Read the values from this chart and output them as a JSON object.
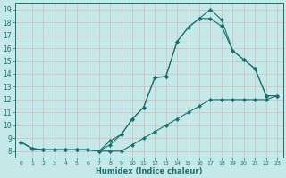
{
  "xlabel": "Humidex (Indice chaleur)",
  "bg_color": "#c5e8e8",
  "grid_color": "#b0d4d4",
  "line_color": "#1a7070",
  "xlim": [
    -0.5,
    23.5
  ],
  "ylim": [
    7.5,
    19.5
  ],
  "xticks": [
    0,
    1,
    2,
    3,
    4,
    5,
    6,
    7,
    8,
    9,
    10,
    11,
    12,
    13,
    14,
    15,
    16,
    17,
    18,
    19,
    20,
    21,
    22,
    23
  ],
  "yticks": [
    8,
    9,
    10,
    11,
    12,
    13,
    14,
    15,
    16,
    17,
    18,
    19
  ],
  "line1_x": [
    0,
    1,
    2,
    3,
    4,
    5,
    6,
    7,
    8,
    9,
    10,
    11,
    12,
    13,
    14,
    15,
    16,
    17,
    18,
    19,
    20,
    21,
    22,
    23
  ],
  "line1_y": [
    8.7,
    8.2,
    8.1,
    8.1,
    8.1,
    8.1,
    8.1,
    8.0,
    8.0,
    8.0,
    8.5,
    9.0,
    9.5,
    10.0,
    10.5,
    11.0,
    11.5,
    12.0,
    12.0,
    12.0,
    12.0,
    12.0,
    12.0,
    12.3
  ],
  "line2_x": [
    0,
    1,
    2,
    3,
    4,
    5,
    6,
    7,
    8,
    9,
    10,
    11,
    12,
    13,
    14,
    15,
    16,
    17,
    18,
    19,
    20,
    21,
    22,
    23
  ],
  "line2_y": [
    8.7,
    8.2,
    8.1,
    8.1,
    8.1,
    8.1,
    8.1,
    8.0,
    8.8,
    9.3,
    10.5,
    11.4,
    13.7,
    13.8,
    16.5,
    17.6,
    18.3,
    18.3,
    17.7,
    15.8,
    15.1,
    14.4,
    12.3,
    12.3
  ],
  "line3_x": [
    0,
    1,
    2,
    3,
    4,
    5,
    6,
    7,
    8,
    9,
    10,
    11,
    12,
    13,
    14,
    15,
    16,
    17,
    18,
    19,
    20,
    21,
    22,
    23
  ],
  "line3_y": [
    8.7,
    8.2,
    8.1,
    8.1,
    8.1,
    8.1,
    8.1,
    8.0,
    8.5,
    9.3,
    10.5,
    11.4,
    13.7,
    13.8,
    16.5,
    17.6,
    18.3,
    19.0,
    18.2,
    15.8,
    15.1,
    14.4,
    12.3,
    12.3
  ]
}
